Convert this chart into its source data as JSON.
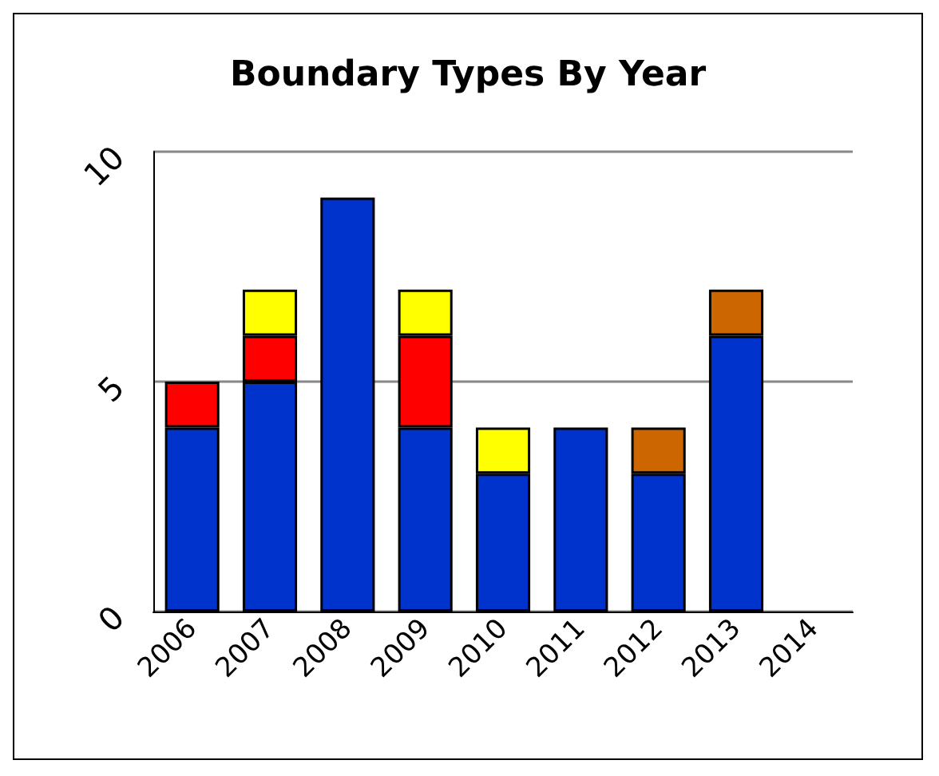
{
  "chart_data": {
    "type": "bar",
    "title": "Boundary Types By Year",
    "categories": [
      "2006",
      "2007",
      "2008",
      "2009",
      "2010",
      "2011",
      "2012",
      "2013",
      "2014"
    ],
    "stacked": true,
    "series": [
      {
        "color": "#0033cc",
        "values": [
          4,
          5,
          9,
          4,
          3,
          4,
          3,
          6,
          null
        ]
      },
      {
        "color": "#ff0000",
        "values": [
          1,
          1,
          null,
          2,
          null,
          null,
          null,
          null,
          null
        ]
      },
      {
        "color": "#ffff00",
        "values": [
          null,
          1,
          null,
          1,
          1,
          null,
          null,
          null,
          null
        ]
      },
      {
        "color": "#cc6600",
        "values": [
          null,
          null,
          null,
          null,
          null,
          null,
          1,
          1,
          null
        ]
      }
    ],
    "ylim": [
      0,
      10
    ],
    "yticks": [
      0,
      5,
      10
    ],
    "grid": "y"
  }
}
